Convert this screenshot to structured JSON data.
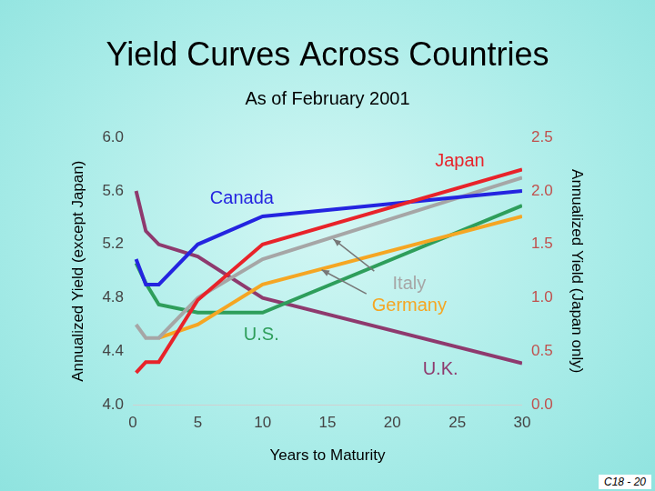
{
  "chart_data": {
    "type": "line",
    "title": "Yield Curves Across Countries",
    "subtitle": "As of February 2001",
    "x_label": "Years to Maturity",
    "y_label": "Annualized Yield (except Japan)",
    "y2_label": "Annualized Yield (Japan only)",
    "annotations": [
      "C18 - 20"
    ],
    "x": [
      0.25,
      1,
      2,
      5,
      10,
      30
    ],
    "series": [
      {
        "name": "Japan",
        "color": "#e8232a",
        "axis": "y2",
        "values": [
          0.3,
          0.4,
          0.4,
          0.98,
          1.5,
          2.2
        ]
      },
      {
        "name": "Canada",
        "color": "#2424e0",
        "values": [
          5.09,
          4.9,
          4.9,
          5.2,
          5.41,
          5.6
        ]
      },
      {
        "name": "Italy",
        "color": "#a6a6a6",
        "values": [
          4.6,
          4.5,
          4.5,
          4.8,
          5.09,
          5.7
        ]
      },
      {
        "name": "Germany",
        "color": "#f5a623",
        "values": [
          null,
          null,
          4.5,
          4.6,
          4.9,
          5.41
        ]
      },
      {
        "name": "U.S.",
        "color": "#2e9e5b",
        "values": [
          5.06,
          4.91,
          4.75,
          4.69,
          4.69,
          5.49
        ]
      },
      {
        "name": "U.K.",
        "color": "#8e3a6e",
        "values": [
          5.6,
          5.3,
          5.2,
          5.11,
          4.8,
          4.31
        ]
      }
    ],
    "xlim": [
      0,
      30
    ],
    "xticks": [
      0,
      5,
      10,
      15,
      20,
      25,
      30
    ],
    "ylim": [
      4.0,
      6.0
    ],
    "yticks": [
      {
        "value": 4,
        "label": "4.0"
      },
      {
        "value": 4.4,
        "label": "4.4"
      },
      {
        "value": 4.8,
        "label": "4.8"
      },
      {
        "value": 5.2,
        "label": "5.2"
      },
      {
        "value": 5.6,
        "label": "5.6"
      },
      {
        "value": 6,
        "label": "6.0"
      }
    ],
    "y2lim": [
      0.0,
      2.5
    ],
    "y2ticks": [
      {
        "value": 0,
        "label": "0.0"
      },
      0.5,
      {
        "value": 1,
        "label": "1.0"
      },
      1.5,
      {
        "value": 2,
        "label": "2.0"
      },
      2.5
    ],
    "grid": false
  }
}
